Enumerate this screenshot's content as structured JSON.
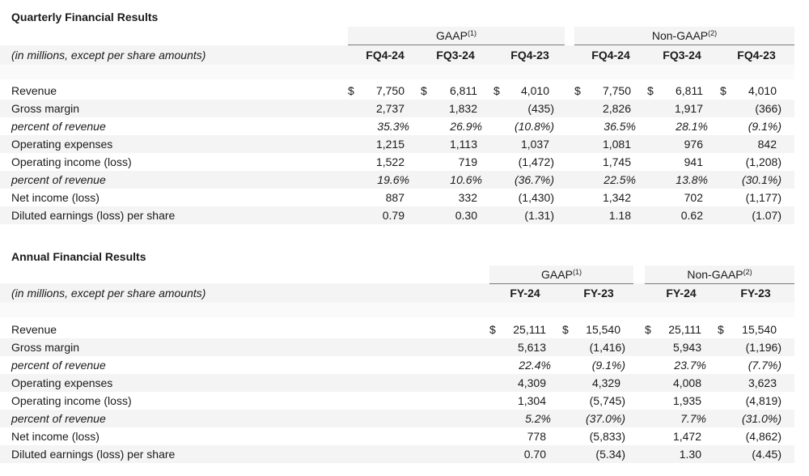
{
  "quarterly": {
    "title": "Quarterly Financial Results",
    "subtitle": "(in millions, except per share amounts)",
    "groups": [
      {
        "name": "GAAP",
        "note": "(1)"
      },
      {
        "name": "Non-GAAP",
        "note": "(2)"
      }
    ],
    "columns": [
      "FQ4-24",
      "FQ3-24",
      "FQ4-23",
      "FQ4-24",
      "FQ3-24",
      "FQ4-23"
    ],
    "currency": "$",
    "rows": [
      {
        "label": "Revenue",
        "italic": false,
        "dollar": true,
        "values": [
          "7,750",
          "6,811",
          "4,010",
          "7,750",
          "6,811",
          "4,010"
        ]
      },
      {
        "label": "Gross margin",
        "italic": false,
        "dollar": false,
        "values": [
          "2,737",
          "1,832",
          "(435)",
          "2,826",
          "1,917",
          "(366)"
        ]
      },
      {
        "label": "percent of revenue",
        "italic": true,
        "dollar": false,
        "values": [
          "35.3%",
          "26.9%",
          "(10.8%)",
          "36.5%",
          "28.1%",
          "(9.1%)"
        ]
      },
      {
        "label": "Operating expenses",
        "italic": false,
        "dollar": false,
        "values": [
          "1,215",
          "1,113",
          "1,037",
          "1,081",
          "976",
          "842"
        ]
      },
      {
        "label": "Operating income (loss)",
        "italic": false,
        "dollar": false,
        "values": [
          "1,522",
          "719",
          "(1,472)",
          "1,745",
          "941",
          "(1,208)"
        ]
      },
      {
        "label": "percent of revenue",
        "italic": true,
        "dollar": false,
        "values": [
          "19.6%",
          "10.6%",
          "(36.7%)",
          "22.5%",
          "13.8%",
          "(30.1%)"
        ]
      },
      {
        "label": "Net income (loss)",
        "italic": false,
        "dollar": false,
        "values": [
          "887",
          "332",
          "(1,430)",
          "1,342",
          "702",
          "(1,177)"
        ]
      },
      {
        "label": "Diluted earnings (loss) per share",
        "italic": false,
        "dollar": false,
        "values": [
          "0.79",
          "0.30",
          "(1.31)",
          "1.18",
          "0.62",
          "(1.07)"
        ]
      }
    ]
  },
  "annual": {
    "title": "Annual Financial Results",
    "subtitle": "(in millions, except per share amounts)",
    "groups": [
      {
        "name": "GAAP",
        "note": "(1)"
      },
      {
        "name": "Non-GAAP",
        "note": "(2)"
      }
    ],
    "columns": [
      "FY-24",
      "FY-23",
      "FY-24",
      "FY-23"
    ],
    "currency": "$",
    "rows": [
      {
        "label": "Revenue",
        "italic": false,
        "dollar": true,
        "values": [
          "25,111",
          "15,540",
          "25,111",
          "15,540"
        ]
      },
      {
        "label": "Gross margin",
        "italic": false,
        "dollar": false,
        "values": [
          "5,613",
          "(1,416)",
          "5,943",
          "(1,196)"
        ]
      },
      {
        "label": "percent of revenue",
        "italic": true,
        "dollar": false,
        "values": [
          "22.4%",
          "(9.1%)",
          "23.7%",
          "(7.7%)"
        ]
      },
      {
        "label": "Operating expenses",
        "italic": false,
        "dollar": false,
        "values": [
          "4,309",
          "4,329",
          "4,008",
          "3,623"
        ]
      },
      {
        "label": "Operating income (loss)",
        "italic": false,
        "dollar": false,
        "values": [
          "1,304",
          "(5,745)",
          "1,935",
          "(4,819)"
        ]
      },
      {
        "label": "percent of revenue",
        "italic": true,
        "dollar": false,
        "values": [
          "5.2%",
          "(37.0%)",
          "7.7%",
          "(31.0%)"
        ]
      },
      {
        "label": "Net income (loss)",
        "italic": false,
        "dollar": false,
        "values": [
          "778",
          "(5,833)",
          "1,472",
          "(4,862)"
        ]
      },
      {
        "label": "Diluted earnings (loss) per share",
        "italic": false,
        "dollar": false,
        "values": [
          "0.70",
          "(5.34)",
          "1.30",
          "(4.45)"
        ]
      }
    ]
  }
}
